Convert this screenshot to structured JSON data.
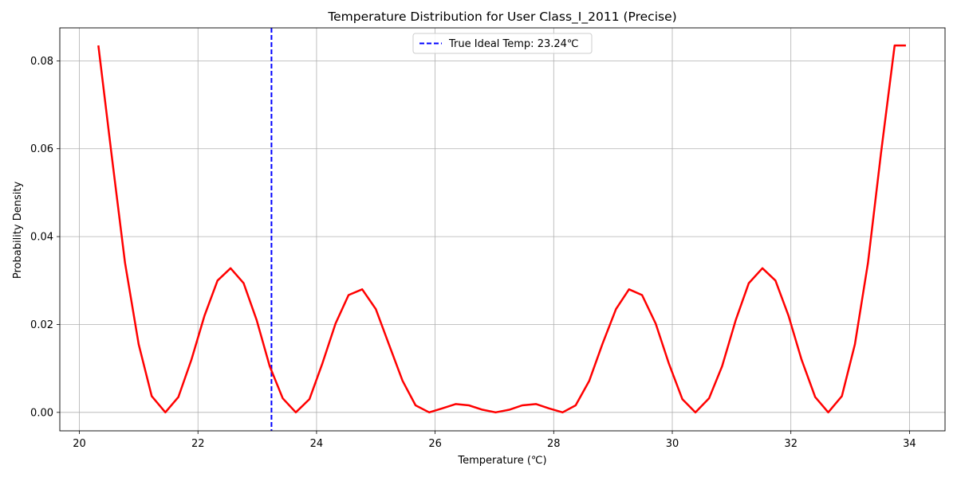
{
  "chart_data": {
    "type": "line",
    "title": "Temperature Distribution for User Class_I_2011 (Precise)",
    "xlabel": "Temperature (℃)",
    "ylabel": "Probability Density",
    "xlim": [
      19.67,
      34.6
    ],
    "ylim": [
      -0.0042,
      0.0875
    ],
    "x_ticks": [
      20,
      22,
      24,
      26,
      28,
      30,
      32,
      34
    ],
    "x_tick_labels": [
      "20",
      "22",
      "24",
      "26",
      "28",
      "30",
      "32",
      "34"
    ],
    "y_ticks": [
      0.0,
      0.02,
      0.04,
      0.06,
      0.08
    ],
    "y_tick_labels": [
      "0.00",
      "0.02",
      "0.04",
      "0.06",
      "0.08"
    ],
    "grid": true,
    "legend_position": "top-center",
    "series": [
      {
        "color": "#ff0000",
        "x": [
          20.32,
          20.54,
          20.77,
          21.0,
          21.22,
          21.45,
          21.67,
          21.89,
          22.11,
          22.33,
          22.55,
          22.77,
          22.99,
          23.21,
          23.43,
          23.65,
          23.88,
          24.1,
          24.32,
          24.54,
          24.77,
          25.0,
          25.22,
          25.45,
          25.67,
          25.9,
          26.12,
          26.35,
          26.57,
          26.8,
          27.02,
          27.25,
          27.47,
          27.7,
          27.92,
          28.15,
          28.37,
          28.6,
          28.82,
          29.05,
          29.27,
          29.49,
          29.72,
          29.94,
          30.17,
          30.39,
          30.62,
          30.84,
          31.07,
          31.29,
          31.52,
          31.74,
          31.96,
          32.18,
          32.41,
          32.63,
          32.86,
          33.08,
          33.3,
          33.52,
          33.75,
          33.94
        ],
        "values": [
          0.0835,
          0.059,
          0.034,
          0.0155,
          0.0037,
          0.0,
          0.0035,
          0.012,
          0.022,
          0.03,
          0.0328,
          0.0294,
          0.021,
          0.0105,
          0.0032,
          0.0,
          0.003,
          0.0112,
          0.0202,
          0.0267,
          0.028,
          0.0235,
          0.0155,
          0.0072,
          0.0016,
          0.0,
          0.0009,
          0.0019,
          0.0016,
          0.0006,
          0.0,
          0.0006,
          0.0016,
          0.0019,
          0.0009,
          0.0,
          0.0016,
          0.0072,
          0.0155,
          0.0235,
          0.028,
          0.0267,
          0.0202,
          0.0112,
          0.003,
          0.0,
          0.0032,
          0.0105,
          0.021,
          0.0294,
          0.0328,
          0.03,
          0.022,
          0.012,
          0.0035,
          0.0,
          0.0037,
          0.0155,
          0.034,
          0.059,
          0.0835,
          0.0835
        ]
      }
    ],
    "reference_line": {
      "orientation": "vertical",
      "x": 23.24,
      "color": "#0000ff",
      "style": "dashed",
      "label": "True Ideal Temp: 23.24℃"
    }
  }
}
